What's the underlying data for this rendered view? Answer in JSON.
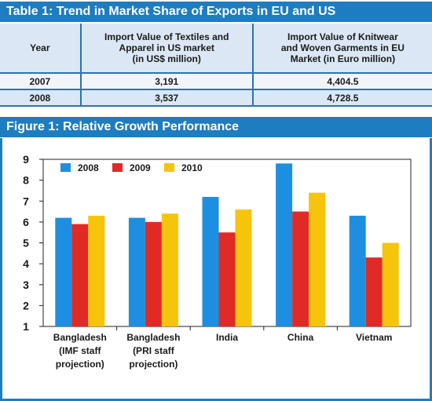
{
  "table": {
    "title": "Table 1: Trend in Market Share of Exports in EU and US",
    "headers": [
      "Year",
      "Import Value of Textiles and\nApparel in US market\n(in US$ million)",
      "Import Value of Knitwear\nand Woven Garments in EU\nMarket (in Euro million)"
    ],
    "rows": [
      [
        "2007",
        "3,191",
        "4,404.5"
      ],
      [
        "2008",
        "3,537",
        "4,728.5"
      ]
    ]
  },
  "figure": {
    "title": "Figure 1: Relative Growth Performance"
  },
  "chart_data": {
    "type": "bar",
    "title": "Figure 1: Relative Growth Performance",
    "categories": [
      [
        "Bangladesh",
        "(IMF staff",
        "projection)"
      ],
      [
        "Bangladesh",
        "(PRI staff",
        "projection)"
      ],
      [
        "India"
      ],
      [
        "China"
      ],
      [
        "Vietnam"
      ]
    ],
    "series": [
      {
        "name": "2008",
        "color": "#1e8fe0",
        "values": [
          6.2,
          6.2,
          7.2,
          8.8,
          6.3
        ]
      },
      {
        "name": "2009",
        "color": "#e02a26",
        "values": [
          5.9,
          6.0,
          5.5,
          6.5,
          4.3
        ]
      },
      {
        "name": "2010",
        "color": "#f6c40a",
        "values": [
          6.3,
          6.4,
          6.6,
          7.4,
          5.0
        ]
      }
    ],
    "yticks": [
      "1",
      "2",
      "3",
      "4",
      "5",
      "6",
      "7",
      "8",
      "9"
    ],
    "ylim": [
      1,
      9
    ],
    "xlabel": "",
    "ylabel": "",
    "legend": "top-left",
    "grid": false
  }
}
